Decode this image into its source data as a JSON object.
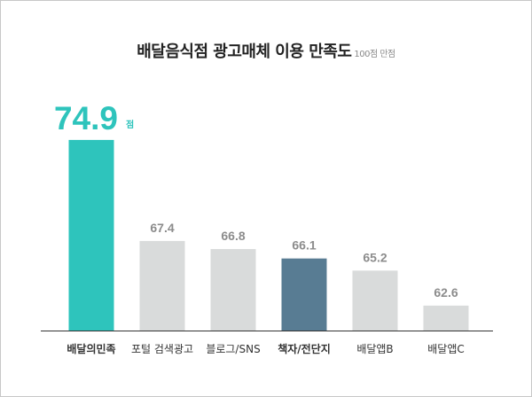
{
  "header": {
    "title": "배달음식점 광고매체 이용 만족도",
    "subtitle": "100점 만점"
  },
  "colors": {
    "highlight": "#2ec4bc",
    "secondary": "#587c93",
    "default": "#d9dbdb",
    "value_text": "#8c8c8c",
    "label_text": "#333333"
  },
  "chart_data": {
    "type": "bar",
    "title": "배달음식점 광고매체 이용 만족도",
    "subtitle": "100점 만점",
    "categories": [
      "배달의민족",
      "포털 검색광고",
      "블로그/SNS",
      "책자/전단지",
      "배달앱B",
      "배달앱C"
    ],
    "values": [
      74.9,
      67.4,
      66.8,
      66.1,
      65.2,
      62.6
    ],
    "value_labels": [
      "74.9",
      "67.4",
      "66.8",
      "66.1",
      "65.2",
      "62.6"
    ],
    "unit": "점",
    "bold_categories": [
      0,
      3
    ],
    "bar_colors": [
      "highlight",
      "default",
      "default",
      "secondary",
      "default",
      "default"
    ],
    "xlabel": "",
    "ylabel": "",
    "grid": false,
    "legend": "none"
  }
}
